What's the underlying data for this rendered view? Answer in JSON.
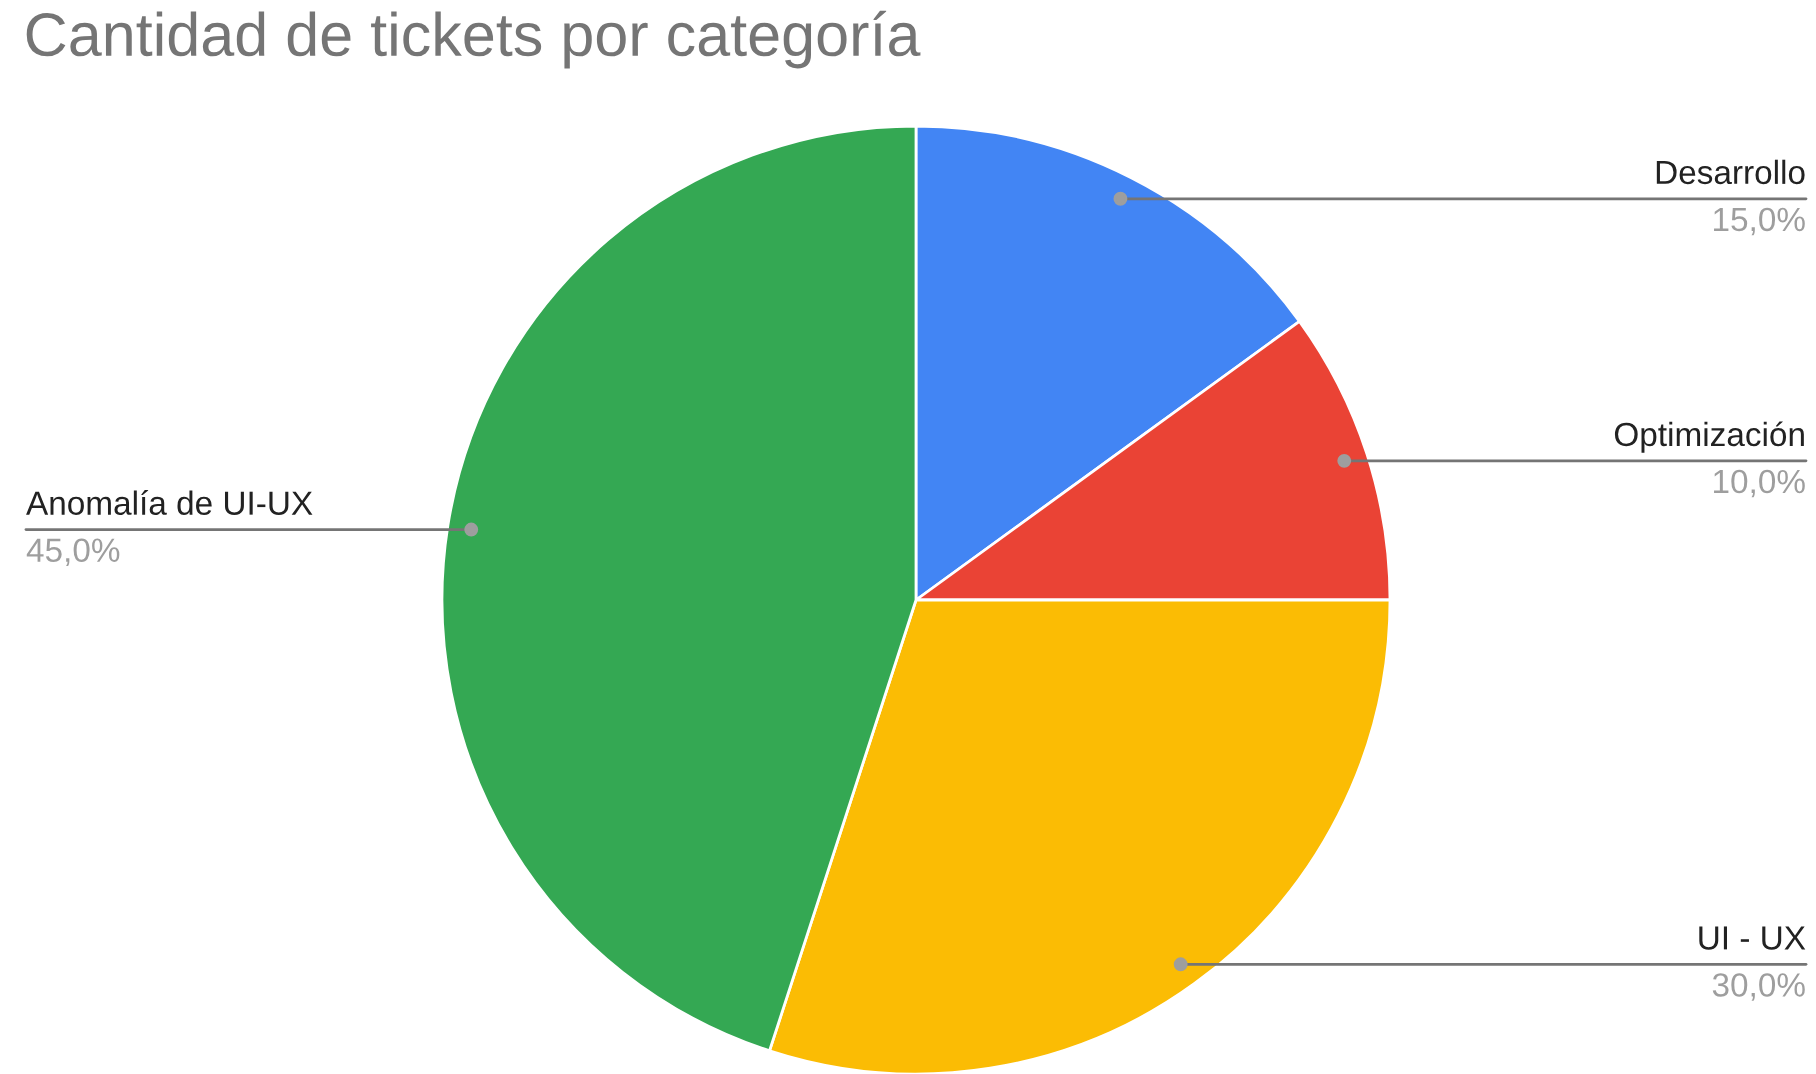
{
  "chart_data": {
    "type": "pie",
    "title": "Cantidad de tickets por categoría",
    "categories": [
      "Desarrollo",
      "Optimización",
      "UI - UX",
      "Anomalía de UI-UX"
    ],
    "values": [
      15,
      10,
      30,
      45
    ],
    "colors": [
      "#4285f4",
      "#ea4335",
      "#fbbc04",
      "#34a853"
    ],
    "value_labels": [
      "15,0%",
      "10,0%",
      "30,0%",
      "45,0%"
    ]
  }
}
